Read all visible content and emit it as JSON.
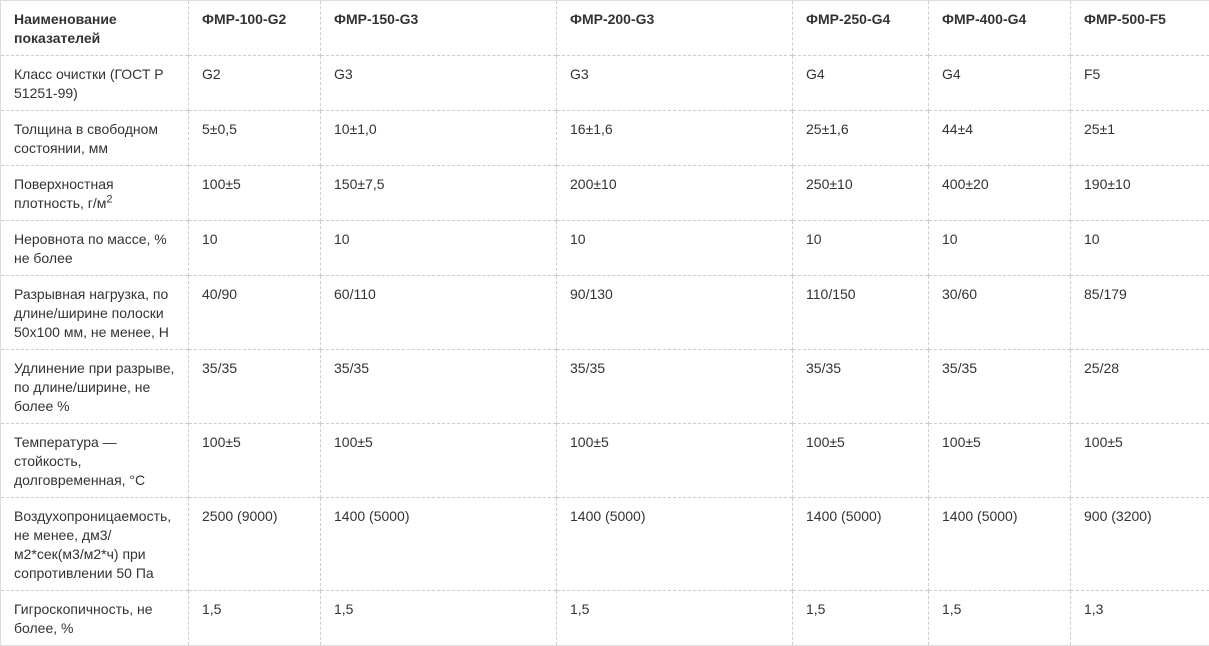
{
  "colors": {
    "text": "#333333",
    "border_dashed": "#cccccc",
    "border_outer": "#dddddd",
    "background": "#ffffff"
  },
  "table": {
    "header": {
      "label_column": "Наименование показателей",
      "columns": [
        "ФМР-100-G2",
        "ФМР-150-G3",
        "ФМР-200-G3",
        "ФМР-250-G4",
        "ФМР-400-G4",
        "ФМР-500-F5"
      ]
    },
    "rows": [
      {
        "label": "Класс очистки (ГОСТ Р 51251-99)",
        "values": [
          "G2",
          "G3",
          "G3",
          "G4",
          "G4",
          "F5"
        ]
      },
      {
        "label": "Толщина в свободном состоянии, мм",
        "values": [
          "5±0,5",
          "10±1,0",
          "16±1,6",
          "25±1,6",
          "44±4",
          "25±1"
        ]
      },
      {
        "label": "Поверхностная плотность, г/м",
        "label_sup": "2",
        "values": [
          "100±5",
          "150±7,5",
          "200±10",
          "250±10",
          "400±20",
          "190±10"
        ]
      },
      {
        "label": "Неровнота по массе, % не более",
        "values": [
          "10",
          "10",
          "10",
          "10",
          "10",
          "10"
        ]
      },
      {
        "label": "Разрывная нагрузка, по длине/ширине полоски 50х100 мм, не менее, Н",
        "values": [
          "40/90",
          "60/110",
          "90/130",
          "110/150",
          "30/60",
          "85/179"
        ]
      },
      {
        "label": "Удлинение при разрыве, по длине/ширине, не более %",
        "values": [
          "35/35",
          "35/35",
          "35/35",
          "35/35",
          "35/35",
          "25/28"
        ]
      },
      {
        "label": "Температура — стойкость, долговременная, °С",
        "values": [
          "100±5",
          "100±5",
          "100±5",
          "100±5",
          "100±5",
          "100±5"
        ]
      },
      {
        "label": "Воздухопроницаемость, не менее, дм3/м2*сек(м3/м2*ч) при сопротивлении 50 Па",
        "values": [
          "2500 (9000)",
          "1400 (5000)",
          "1400 (5000)",
          "1400 (5000)",
          "1400 (5000)",
          "900 (3200)"
        ]
      },
      {
        "label": "Гигроскопичность, не более, %",
        "values": [
          "1,5",
          "1,5",
          "1,5",
          "1,5",
          "1,5",
          "1,3"
        ]
      }
    ]
  }
}
